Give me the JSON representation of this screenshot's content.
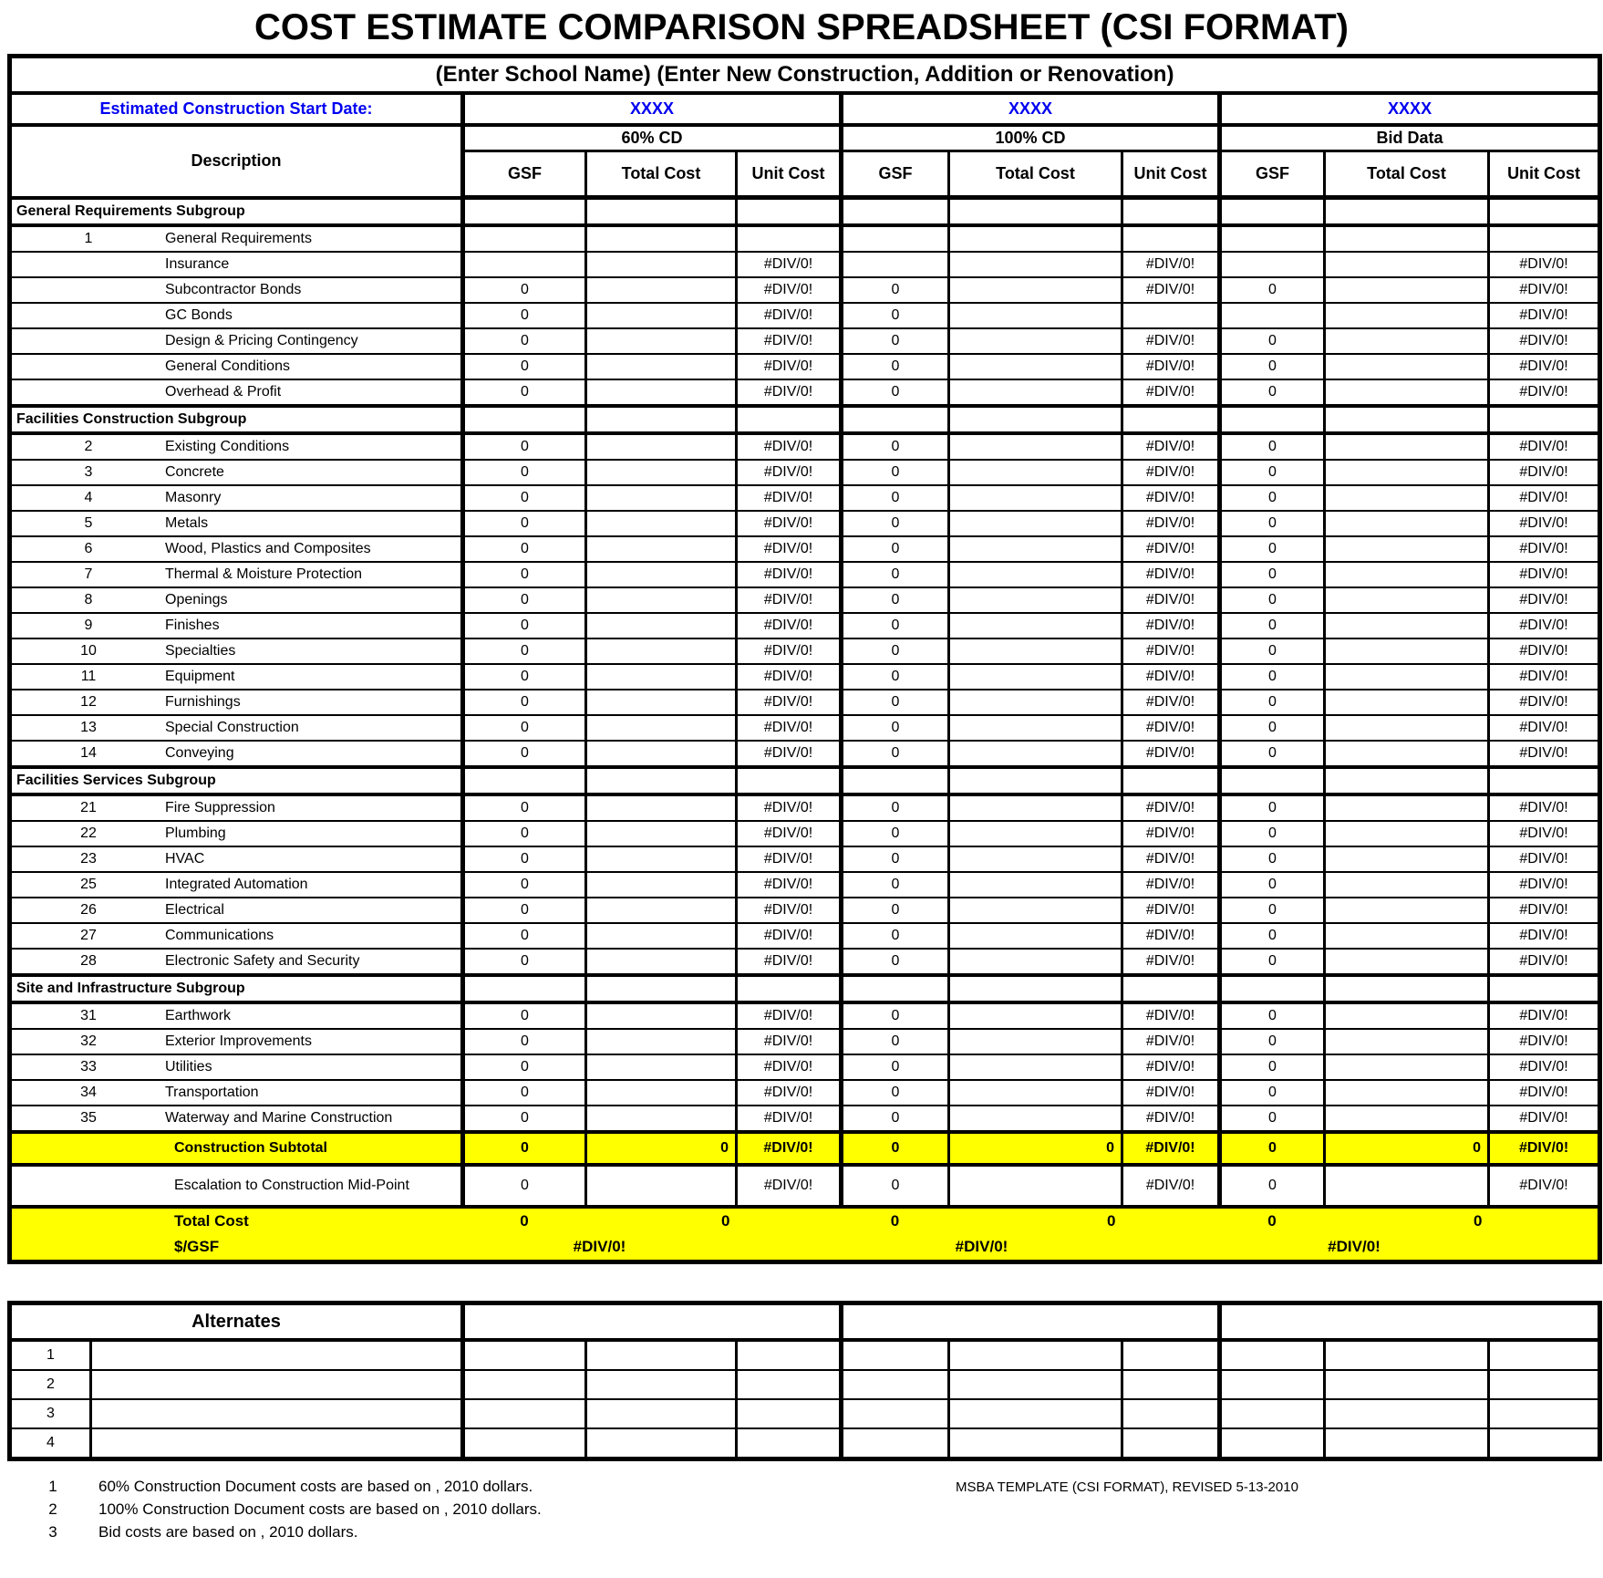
{
  "title": "COST ESTIMATE COMPARISON SPREADSHEET (CSI FORMAT)",
  "colors": {
    "highlight_yellow": "#FFFF00",
    "accent_blue": "#0000F0"
  },
  "main_table": {
    "school_line": "(Enter School Name) (Enter New Construction, Addition or Renovation)",
    "start_date_label": "Estimated Construction Start Date:",
    "start_date_values": [
      "XXXX",
      "XXXX",
      "XXXX"
    ],
    "description_header": "Description",
    "sections": [
      "60% CD",
      "100% CD",
      "Bid Data"
    ],
    "sub_headers": [
      "GSF",
      "Total Cost",
      "Unit Cost"
    ],
    "rows": [
      {
        "t": "sub",
        "label": "General Requirements Subgroup"
      },
      {
        "t": "item",
        "n": "1",
        "label": "General Requirements",
        "c": [
          "",
          "",
          "",
          "",
          "",
          "",
          "",
          "",
          ""
        ]
      },
      {
        "t": "item",
        "n": "",
        "label": "Insurance",
        "c": [
          "",
          "",
          "#DIV/0!",
          "",
          "",
          "#DIV/0!",
          "",
          "",
          "#DIV/0!"
        ]
      },
      {
        "t": "item",
        "n": "",
        "label": "Subcontractor Bonds",
        "c": [
          "0",
          "",
          "#DIV/0!",
          "0",
          "",
          "#DIV/0!",
          "0",
          "",
          "#DIV/0!"
        ]
      },
      {
        "t": "item",
        "n": "",
        "label": "GC Bonds",
        "c": [
          "0",
          "",
          "#DIV/0!",
          "0",
          "",
          "",
          "",
          "",
          "#DIV/0!"
        ]
      },
      {
        "t": "item",
        "n": "",
        "label": "Design & Pricing Contingency",
        "c": [
          "0",
          "",
          "#DIV/0!",
          "0",
          "",
          "#DIV/0!",
          "0",
          "",
          "#DIV/0!"
        ]
      },
      {
        "t": "item",
        "n": "",
        "label": "General Conditions",
        "c": [
          "0",
          "",
          "#DIV/0!",
          "0",
          "",
          "#DIV/0!",
          "0",
          "",
          "#DIV/0!"
        ]
      },
      {
        "t": "item",
        "n": "",
        "label": "Overhead & Profit",
        "c": [
          "0",
          "",
          "#DIV/0!",
          "0",
          "",
          "#DIV/0!",
          "0",
          "",
          "#DIV/0!"
        ]
      },
      {
        "t": "sub",
        "label": "Facilities Construction Subgroup"
      },
      {
        "t": "item",
        "n": "2",
        "label": "Existing Conditions",
        "c": [
          "0",
          "",
          "#DIV/0!",
          "0",
          "",
          "#DIV/0!",
          "0",
          "",
          "#DIV/0!"
        ]
      },
      {
        "t": "item",
        "n": "3",
        "label": "Concrete",
        "c": [
          "0",
          "",
          "#DIV/0!",
          "0",
          "",
          "#DIV/0!",
          "0",
          "",
          "#DIV/0!"
        ]
      },
      {
        "t": "item",
        "n": "4",
        "label": "Masonry",
        "c": [
          "0",
          "",
          "#DIV/0!",
          "0",
          "",
          "#DIV/0!",
          "0",
          "",
          "#DIV/0!"
        ]
      },
      {
        "t": "item",
        "n": "5",
        "label": "Metals",
        "c": [
          "0",
          "",
          "#DIV/0!",
          "0",
          "",
          "#DIV/0!",
          "0",
          "",
          "#DIV/0!"
        ]
      },
      {
        "t": "item",
        "n": "6",
        "label": "Wood, Plastics and Composites",
        "c": [
          "0",
          "",
          "#DIV/0!",
          "0",
          "",
          "#DIV/0!",
          "0",
          "",
          "#DIV/0!"
        ]
      },
      {
        "t": "item",
        "n": "7",
        "label": "Thermal & Moisture Protection",
        "c": [
          "0",
          "",
          "#DIV/0!",
          "0",
          "",
          "#DIV/0!",
          "0",
          "",
          "#DIV/0!"
        ]
      },
      {
        "t": "item",
        "n": "8",
        "label": "Openings",
        "c": [
          "0",
          "",
          "#DIV/0!",
          "0",
          "",
          "#DIV/0!",
          "0",
          "",
          "#DIV/0!"
        ]
      },
      {
        "t": "item",
        "n": "9",
        "label": "Finishes",
        "c": [
          "0",
          "",
          "#DIV/0!",
          "0",
          "",
          "#DIV/0!",
          "0",
          "",
          "#DIV/0!"
        ]
      },
      {
        "t": "item",
        "n": "10",
        "label": "Specialties",
        "c": [
          "0",
          "",
          "#DIV/0!",
          "0",
          "",
          "#DIV/0!",
          "0",
          "",
          "#DIV/0!"
        ]
      },
      {
        "t": "item",
        "n": "11",
        "label": "Equipment",
        "c": [
          "0",
          "",
          "#DIV/0!",
          "0",
          "",
          "#DIV/0!",
          "0",
          "",
          "#DIV/0!"
        ]
      },
      {
        "t": "item",
        "n": "12",
        "label": "Furnishings",
        "c": [
          "0",
          "",
          "#DIV/0!",
          "0",
          "",
          "#DIV/0!",
          "0",
          "",
          "#DIV/0!"
        ]
      },
      {
        "t": "item",
        "n": "13",
        "label": "Special Construction",
        "c": [
          "0",
          "",
          "#DIV/0!",
          "0",
          "",
          "#DIV/0!",
          "0",
          "",
          "#DIV/0!"
        ]
      },
      {
        "t": "item",
        "n": "14",
        "label": "Conveying",
        "c": [
          "0",
          "",
          "#DIV/0!",
          "0",
          "",
          "#DIV/0!",
          "0",
          "",
          "#DIV/0!"
        ]
      },
      {
        "t": "sub",
        "label": "Facilities Services Subgroup"
      },
      {
        "t": "item",
        "n": "21",
        "label": "Fire Suppression",
        "c": [
          "0",
          "",
          "#DIV/0!",
          "0",
          "",
          "#DIV/0!",
          "0",
          "",
          "#DIV/0!"
        ]
      },
      {
        "t": "item",
        "n": "22",
        "label": "Plumbing",
        "c": [
          "0",
          "",
          "#DIV/0!",
          "0",
          "",
          "#DIV/0!",
          "0",
          "",
          "#DIV/0!"
        ]
      },
      {
        "t": "item",
        "n": "23",
        "label": "HVAC",
        "c": [
          "0",
          "",
          "#DIV/0!",
          "0",
          "",
          "#DIV/0!",
          "0",
          "",
          "#DIV/0!"
        ]
      },
      {
        "t": "item",
        "n": "25",
        "label": "Integrated Automation",
        "c": [
          "0",
          "",
          "#DIV/0!",
          "0",
          "",
          "#DIV/0!",
          "0",
          "",
          "#DIV/0!"
        ]
      },
      {
        "t": "item",
        "n": "26",
        "label": "Electrical",
        "c": [
          "0",
          "",
          "#DIV/0!",
          "0",
          "",
          "#DIV/0!",
          "0",
          "",
          "#DIV/0!"
        ]
      },
      {
        "t": "item",
        "n": "27",
        "label": "Communications",
        "c": [
          "0",
          "",
          "#DIV/0!",
          "0",
          "",
          "#DIV/0!",
          "0",
          "",
          "#DIV/0!"
        ]
      },
      {
        "t": "item",
        "n": "28",
        "label": "Electronic Safety and Security",
        "c": [
          "0",
          "",
          "#DIV/0!",
          "0",
          "",
          "#DIV/0!",
          "0",
          "",
          "#DIV/0!"
        ]
      },
      {
        "t": "sub",
        "label": "Site and Infrastructure Subgroup"
      },
      {
        "t": "item",
        "n": "31",
        "label": "Earthwork",
        "c": [
          "0",
          "",
          "#DIV/0!",
          "0",
          "",
          "#DIV/0!",
          "0",
          "",
          "#DIV/0!"
        ]
      },
      {
        "t": "item",
        "n": "32",
        "label": "Exterior Improvements",
        "c": [
          "0",
          "",
          "#DIV/0!",
          "0",
          "",
          "#DIV/0!",
          "0",
          "",
          "#DIV/0!"
        ]
      },
      {
        "t": "item",
        "n": "33",
        "label": "Utilities",
        "c": [
          "0",
          "",
          "#DIV/0!",
          "0",
          "",
          "#DIV/0!",
          "0",
          "",
          "#DIV/0!"
        ]
      },
      {
        "t": "item",
        "n": "34",
        "label": "Transportation",
        "c": [
          "0",
          "",
          "#DIV/0!",
          "0",
          "",
          "#DIV/0!",
          "0",
          "",
          "#DIV/0!"
        ]
      },
      {
        "t": "item",
        "n": "35",
        "label": "Waterway and Marine Construction",
        "c": [
          "0",
          "",
          "#DIV/0!",
          "0",
          "",
          "#DIV/0!",
          "0",
          "",
          "#DIV/0!"
        ]
      },
      {
        "t": "subtotal",
        "label": "Construction Subtotal",
        "c": [
          "0",
          "0",
          "#DIV/0!",
          "0",
          "0",
          "#DIV/0!",
          "0",
          "0",
          "#DIV/0!"
        ]
      },
      {
        "t": "esc",
        "label": "Escalation to Construction Mid-Point",
        "c": [
          "0",
          "",
          "#DIV/0!",
          "0",
          "",
          "#DIV/0!",
          "0",
          "",
          "#DIV/0!"
        ]
      }
    ],
    "total_row": {
      "label": "Total Cost",
      "gsf": [
        "0",
        "0",
        "0"
      ],
      "total": [
        "0",
        "0",
        "0"
      ]
    },
    "per_gsf_row": {
      "label": "$/GSF",
      "values": [
        "#DIV/0!",
        "#DIV/0!",
        "#DIV/0!"
      ]
    }
  },
  "alternates": {
    "header": "Alternates",
    "row_numbers": [
      "1",
      "2",
      "3",
      "4"
    ]
  },
  "footnotes": [
    {
      "num": "1",
      "text": "60% Construction Document costs are based on  , 2010 dollars."
    },
    {
      "num": "2",
      "text": "100% Construction Document costs are based on  , 2010 dollars."
    },
    {
      "num": "3",
      "text": "Bid costs are based on  , 2010 dollars."
    }
  ],
  "template_note": "MSBA TEMPLATE (CSI FORMAT), REVISED  5-13-2010"
}
